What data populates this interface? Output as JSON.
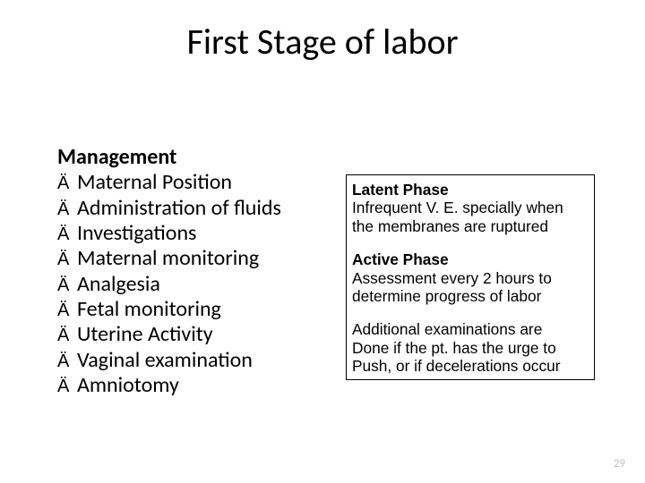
{
  "title": "First Stage of labor",
  "left": {
    "heading": "Management",
    "bullet_glyph": "Ä",
    "items": [
      "Maternal Position",
      "Administration of fluids",
      "Investigations",
      "Maternal monitoring",
      "Analgesia",
      "Fetal monitoring",
      "Uterine Activity",
      "Vaginal examination",
      "Amniotomy"
    ]
  },
  "right": {
    "phase1_title": "Latent Phase",
    "phase1_line1": "Infrequent V. E. specially when",
    "phase1_line2": "the membranes are ruptured",
    "phase2_title": "Active Phase",
    "phase2_line1": "Assessment every 2 hours to",
    "phase2_line2": "determine progress of labor",
    "extra_line1": "Additional examinations are",
    "extra_line2": "Done if the pt. has the urge to",
    "extra_line3": "Push, or if decelerations occur"
  },
  "page_number": "29",
  "colors": {
    "text": "#000000",
    "background": "#ffffff",
    "page_num": "#bfbfbf",
    "border": "#000000"
  },
  "typography": {
    "title_fontsize": 40,
    "body_fontsize": 24,
    "box_fontsize": 17,
    "pagenum_fontsize": 13
  }
}
